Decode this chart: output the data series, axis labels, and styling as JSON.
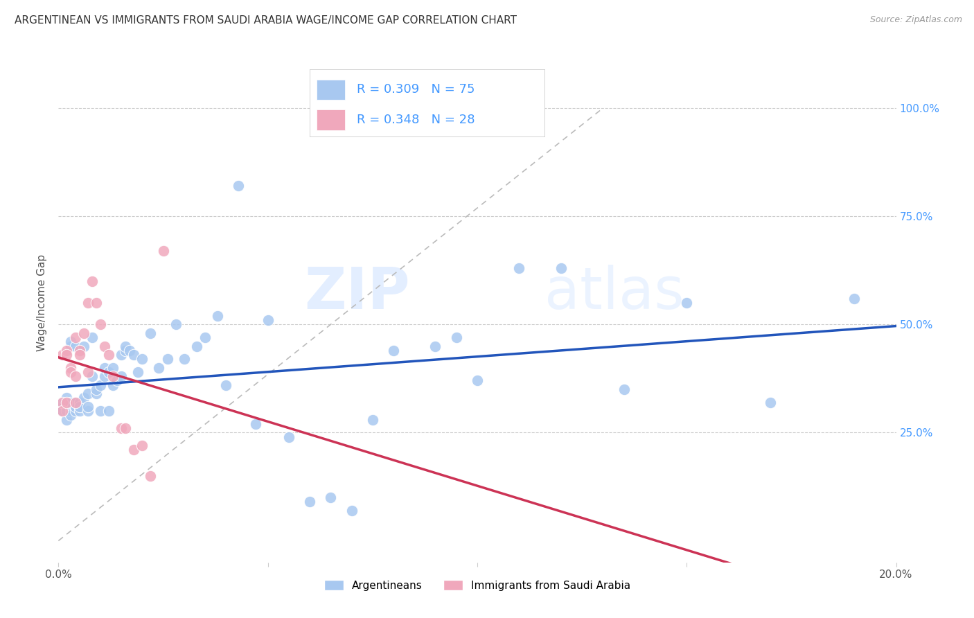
{
  "title": "ARGENTINEAN VS IMMIGRANTS FROM SAUDI ARABIA WAGE/INCOME GAP CORRELATION CHART",
  "source": "Source: ZipAtlas.com",
  "ylabel": "Wage/Income Gap",
  "xlim": [
    0.0,
    0.2
  ],
  "ylim": [
    -5.0,
    115.0
  ],
  "blue_color": "#A8C8F0",
  "pink_color": "#F0A8BC",
  "trend_blue": "#2255BB",
  "trend_pink": "#CC3355",
  "r_blue": 0.309,
  "n_blue": 75,
  "r_pink": 0.348,
  "n_pink": 28,
  "watermark_zip": "ZIP",
  "watermark_atlas": "atlas",
  "background_color": "#FFFFFF",
  "grid_color": "#CCCCCC",
  "right_tick_color": "#4499FF",
  "title_color": "#333333",
  "source_color": "#999999",
  "blue_scatter_x": [
    0.001,
    0.001,
    0.001,
    0.001,
    0.002,
    0.002,
    0.002,
    0.002,
    0.002,
    0.003,
    0.003,
    0.003,
    0.003,
    0.003,
    0.003,
    0.004,
    0.004,
    0.004,
    0.004,
    0.005,
    0.005,
    0.005,
    0.006,
    0.006,
    0.007,
    0.007,
    0.007,
    0.008,
    0.008,
    0.009,
    0.009,
    0.01,
    0.01,
    0.011,
    0.011,
    0.012,
    0.012,
    0.013,
    0.013,
    0.014,
    0.015,
    0.015,
    0.016,
    0.016,
    0.017,
    0.018,
    0.019,
    0.02,
    0.022,
    0.024,
    0.026,
    0.028,
    0.03,
    0.033,
    0.035,
    0.038,
    0.04,
    0.043,
    0.047,
    0.05,
    0.055,
    0.06,
    0.065,
    0.07,
    0.075,
    0.08,
    0.09,
    0.095,
    0.1,
    0.11,
    0.12,
    0.135,
    0.15,
    0.17,
    0.19
  ],
  "blue_scatter_y": [
    31,
    30,
    30,
    32,
    28,
    32,
    33,
    31,
    30,
    30,
    31,
    29,
    32,
    45,
    46,
    30,
    31,
    32,
    45,
    32,
    30,
    31,
    33,
    45,
    30,
    34,
    31,
    38,
    47,
    34,
    35,
    30,
    36,
    38,
    40,
    30,
    39,
    36,
    40,
    37,
    38,
    43,
    44,
    45,
    44,
    43,
    39,
    42,
    48,
    40,
    42,
    50,
    42,
    45,
    47,
    52,
    36,
    82,
    27,
    51,
    24,
    9,
    10,
    7,
    28,
    44,
    45,
    47,
    37,
    63,
    63,
    35,
    55,
    32,
    56
  ],
  "pink_scatter_x": [
    0.001,
    0.001,
    0.001,
    0.002,
    0.002,
    0.002,
    0.003,
    0.003,
    0.004,
    0.004,
    0.004,
    0.005,
    0.005,
    0.006,
    0.007,
    0.007,
    0.008,
    0.009,
    0.01,
    0.011,
    0.012,
    0.013,
    0.015,
    0.016,
    0.018,
    0.02,
    0.022,
    0.025
  ],
  "pink_scatter_y": [
    32,
    30,
    43,
    44,
    43,
    32,
    40,
    39,
    47,
    38,
    32,
    44,
    43,
    48,
    55,
    39,
    60,
    55,
    50,
    45,
    43,
    38,
    26,
    26,
    21,
    22,
    15,
    67
  ]
}
